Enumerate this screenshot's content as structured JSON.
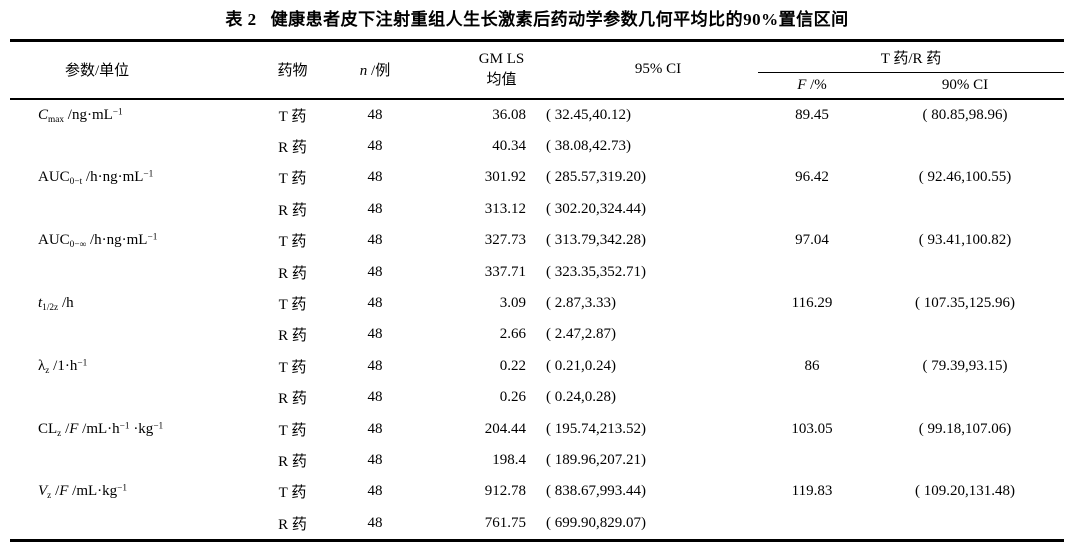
{
  "caption": {
    "label": "表 2",
    "text": "健康患者皮下注射重组人生长激素后药动学参数几何平均比的90%置信区间"
  },
  "headers": {
    "param": "参数/单位",
    "drug": "药物",
    "n": [
      {
        "s": "i",
        "v": "n"
      },
      {
        "s": "t",
        "v": " /例"
      }
    ],
    "gm": "GM LS 均值",
    "ci95": "95% CI",
    "ratio": "T 药/R 药",
    "f": [
      {
        "s": "i",
        "v": "F"
      },
      {
        "s": "t",
        "v": " /%"
      }
    ],
    "ci90": "90% CI"
  },
  "table": {
    "rows": [
      {
        "param": [
          {
            "s": "i",
            "v": "C"
          },
          {
            "s": "sub",
            "v": "max"
          },
          {
            "s": "t",
            "v": " /ng·mL"
          },
          {
            "s": "sup",
            "v": "−1"
          }
        ],
        "drug": "T 药",
        "n": "48",
        "gm": "36.08",
        "ci95": "( 32.45,40.12)",
        "f": "89.45",
        "ci90": "( 80.85,98.96)"
      },
      {
        "param": null,
        "drug": "R 药",
        "n": "48",
        "gm": "40.34",
        "ci95": "( 38.08,42.73)",
        "f": "",
        "ci90": ""
      },
      {
        "param": [
          {
            "s": "t",
            "v": "AUC"
          },
          {
            "s": "sub",
            "v": "0−t"
          },
          {
            "s": "t",
            "v": " /h·ng·mL"
          },
          {
            "s": "sup",
            "v": "−1"
          }
        ],
        "drug": "T 药",
        "n": "48",
        "gm": "301.92",
        "ci95": "( 285.57,319.20)",
        "f": "96.42",
        "ci90": "( 92.46,100.55)"
      },
      {
        "param": null,
        "drug": "R 药",
        "n": "48",
        "gm": "313.12",
        "ci95": "( 302.20,324.44)",
        "f": "",
        "ci90": ""
      },
      {
        "param": [
          {
            "s": "t",
            "v": "AUC"
          },
          {
            "s": "sub",
            "v": "0−∞"
          },
          {
            "s": "t",
            "v": " /h·ng·mL"
          },
          {
            "s": "sup",
            "v": "−1"
          }
        ],
        "drug": "T 药",
        "n": "48",
        "gm": "327.73",
        "ci95": "( 313.79,342.28)",
        "f": "97.04",
        "ci90": "( 93.41,100.82)"
      },
      {
        "param": null,
        "drug": "R 药",
        "n": "48",
        "gm": "337.71",
        "ci95": "( 323.35,352.71)",
        "f": "",
        "ci90": ""
      },
      {
        "param": [
          {
            "s": "i",
            "v": "t"
          },
          {
            "s": "sub",
            "v": "1/2z"
          },
          {
            "s": "t",
            "v": " /h"
          }
        ],
        "drug": "T 药",
        "n": "48",
        "gm": "3.09",
        "ci95": "( 2.87,3.33)",
        "f": "116.29",
        "ci90": "( 107.35,125.96)"
      },
      {
        "param": null,
        "drug": "R 药",
        "n": "48",
        "gm": "2.66",
        "ci95": "( 2.47,2.87)",
        "f": "",
        "ci90": ""
      },
      {
        "param": [
          {
            "s": "t",
            "v": "λ"
          },
          {
            "s": "sub",
            "v": "z"
          },
          {
            "s": "t",
            "v": " /1·h"
          },
          {
            "s": "sup",
            "v": "−1"
          }
        ],
        "drug": "T 药",
        "n": "48",
        "gm": "0.22",
        "ci95": "( 0.21,0.24)",
        "f": "86",
        "ci90": "( 79.39,93.15)"
      },
      {
        "param": null,
        "drug": "R 药",
        "n": "48",
        "gm": "0.26",
        "ci95": "( 0.24,0.28)",
        "f": "",
        "ci90": ""
      },
      {
        "param": [
          {
            "s": "t",
            "v": "CL"
          },
          {
            "s": "sub",
            "v": "z"
          },
          {
            "s": "t",
            "v": " /"
          },
          {
            "s": "i",
            "v": "F"
          },
          {
            "s": "t",
            "v": " /mL·h"
          },
          {
            "s": "sup",
            "v": "−1"
          },
          {
            "s": "t",
            "v": " ·kg"
          },
          {
            "s": "sup",
            "v": "−1"
          }
        ],
        "drug": "T 药",
        "n": "48",
        "gm": "204.44",
        "ci95": "( 195.74,213.52)",
        "f": "103.05",
        "ci90": "( 99.18,107.06)"
      },
      {
        "param": null,
        "drug": "R 药",
        "n": "48",
        "gm": "198.4",
        "ci95": "( 189.96,207.21)",
        "f": "",
        "ci90": ""
      },
      {
        "param": [
          {
            "s": "i",
            "v": "V"
          },
          {
            "s": "sub",
            "v": "z"
          },
          {
            "s": "t",
            "v": " /"
          },
          {
            "s": "i",
            "v": "F"
          },
          {
            "s": "t",
            "v": " /mL·kg"
          },
          {
            "s": "sup",
            "v": "−1"
          }
        ],
        "drug": "T 药",
        "n": "48",
        "gm": "912.78",
        "ci95": "( 838.67,993.44)",
        "f": "119.83",
        "ci90": "( 109.20,131.48)"
      },
      {
        "param": null,
        "drug": "R 药",
        "n": "48",
        "gm": "761.75",
        "ci95": "( 699.90,829.07)",
        "f": "",
        "ci90": ""
      }
    ]
  }
}
